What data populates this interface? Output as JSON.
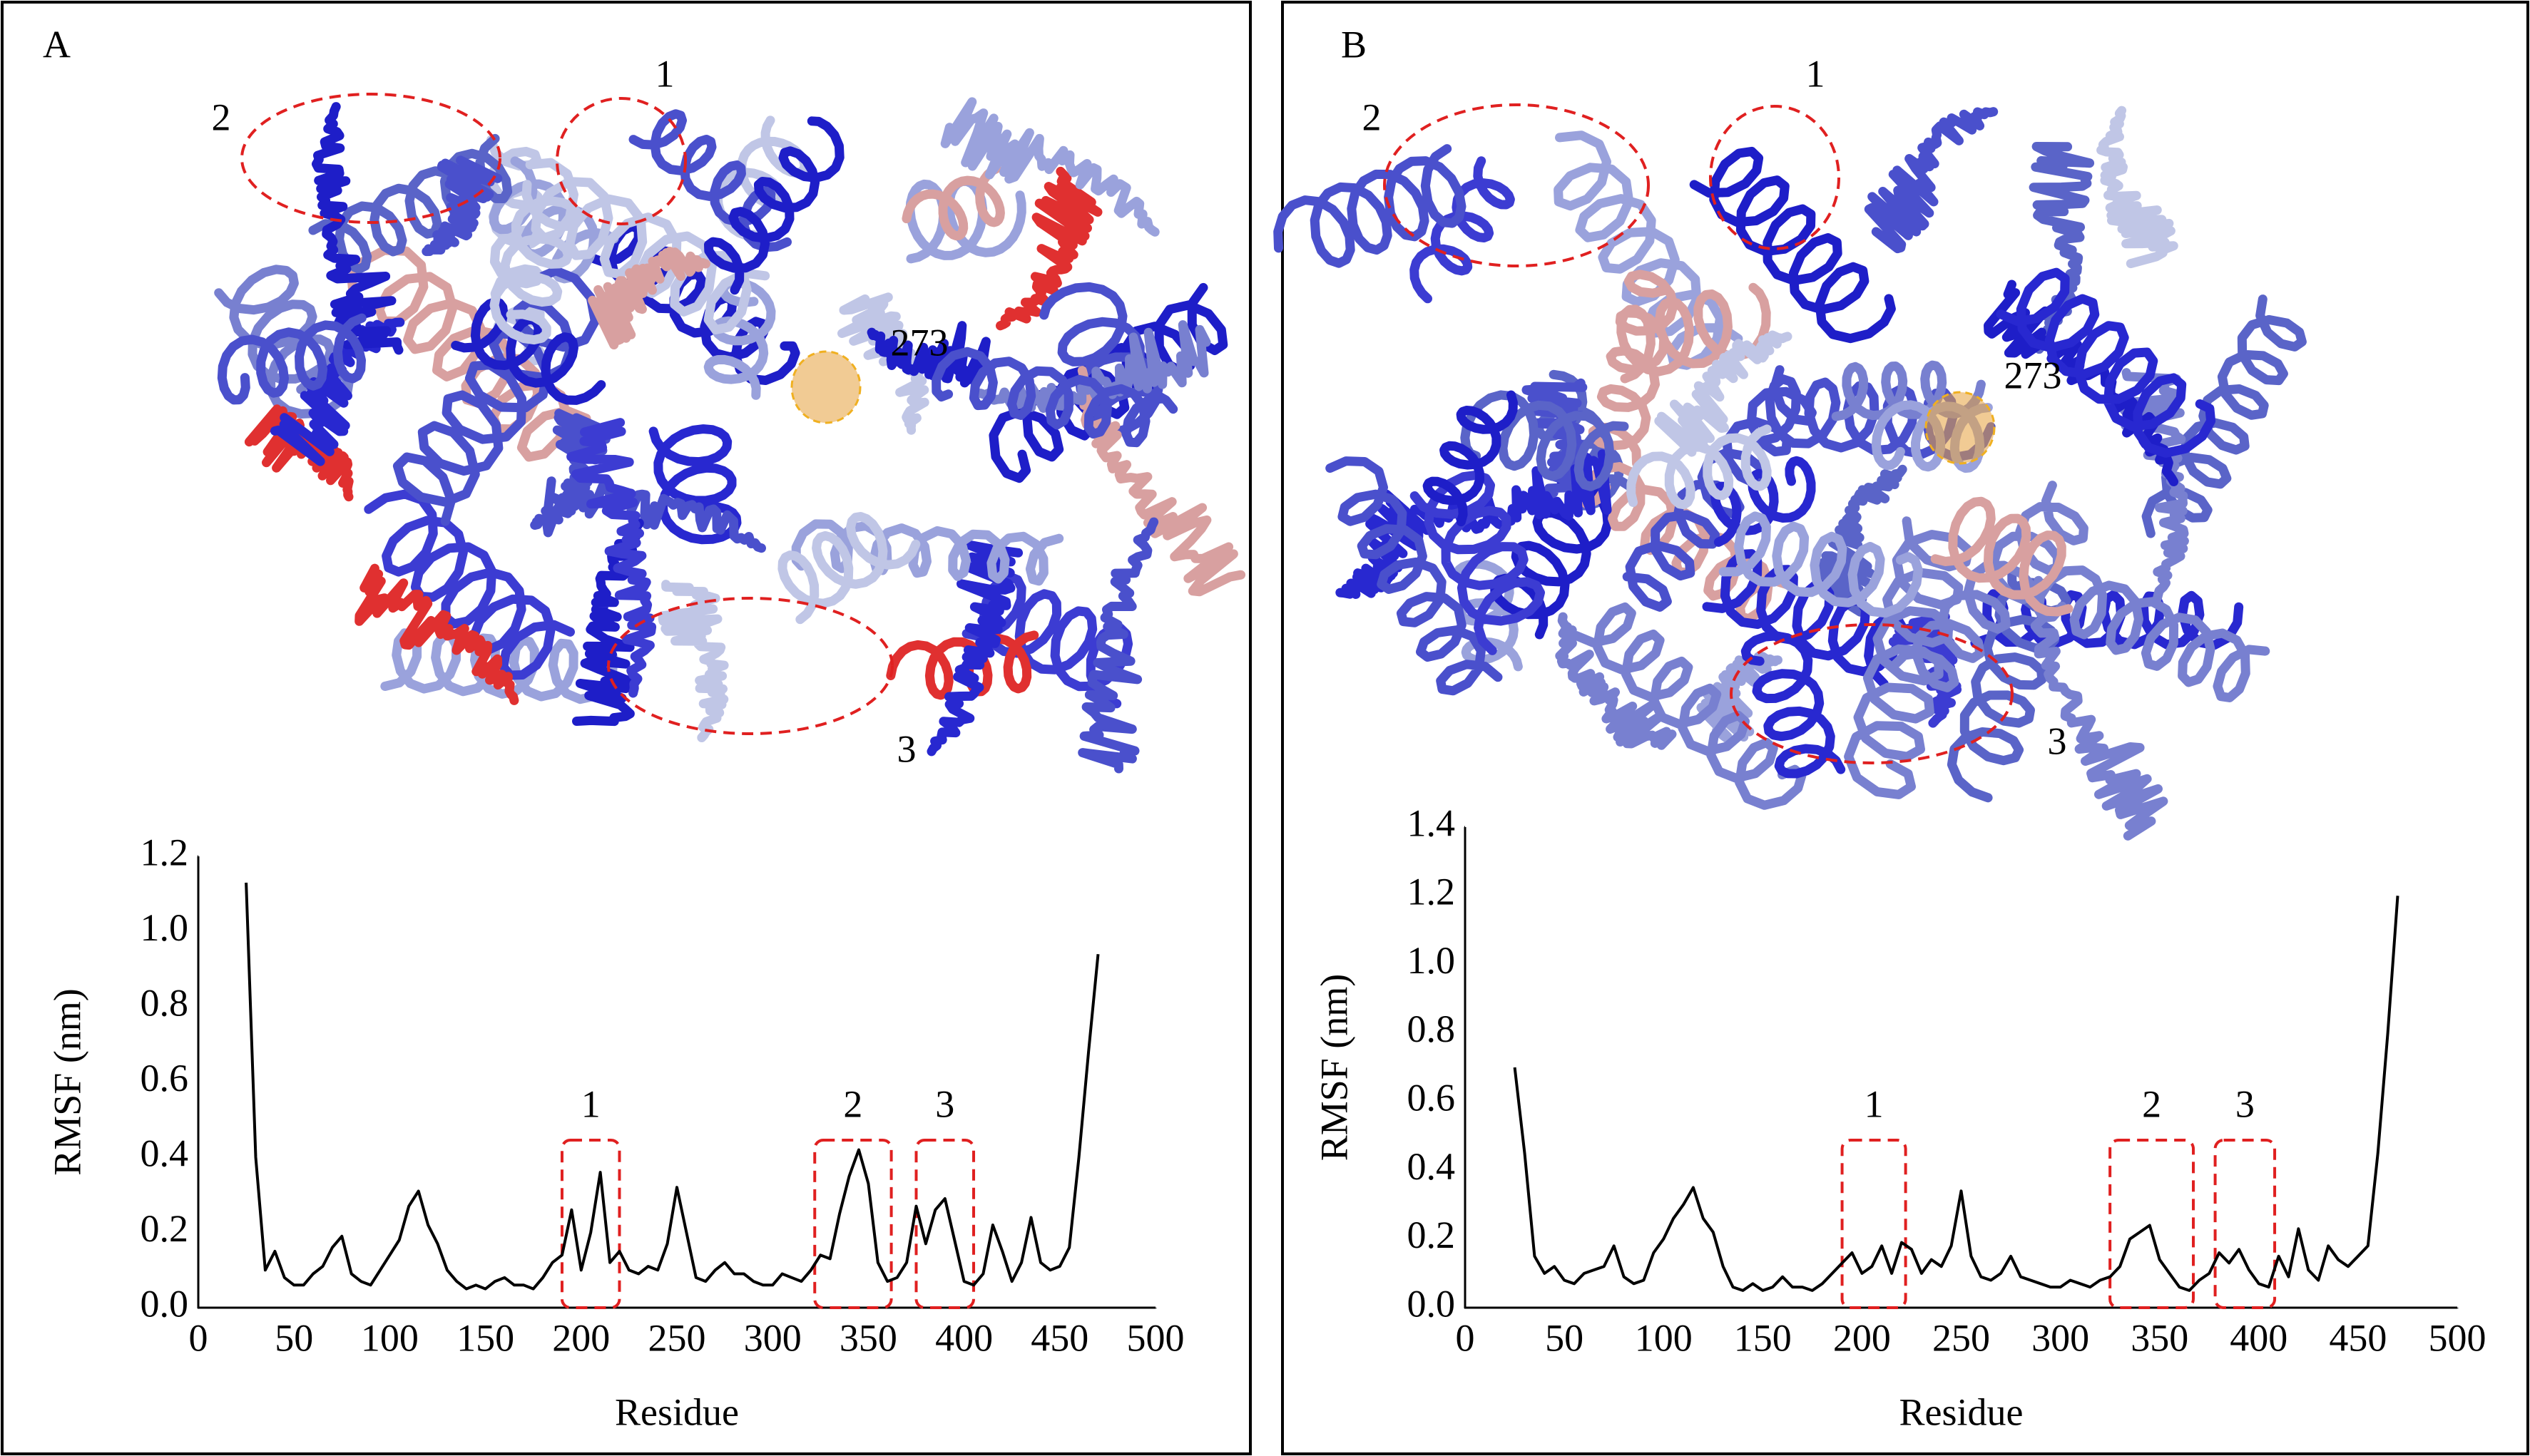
{
  "chart_data": [
    {
      "type": "line",
      "panel_label": "A",
      "structure_labels": [
        "1",
        "2",
        "3",
        "273"
      ],
      "xlabel": "Residue",
      "ylabel": "RMSF (nm)",
      "color": "#000000",
      "grid": false,
      "xlim": [
        0,
        500
      ],
      "ylim": [
        0,
        1.2
      ],
      "xticks": [
        0,
        50,
        100,
        150,
        200,
        250,
        300,
        350,
        400,
        450,
        500
      ],
      "yticks": [
        {
          "value": 0,
          "label": "0.0"
        },
        0.2,
        0.4,
        0.6,
        0.8,
        {
          "value": 1,
          "label": "1.0"
        },
        1.2
      ],
      "highlight_regions": [
        {
          "label": "1",
          "start": 190,
          "end": 220
        },
        {
          "label": "2",
          "start": 322,
          "end": 362
        },
        {
          "label": "3",
          "start": 375,
          "end": 405
        }
      ],
      "highlight_color": "#e02020",
      "x": [
        25,
        30,
        35,
        40,
        45,
        50,
        55,
        60,
        65,
        70,
        75,
        80,
        85,
        90,
        95,
        100,
        105,
        110,
        115,
        120,
        125,
        130,
        135,
        140,
        145,
        150,
        155,
        160,
        165,
        170,
        175,
        180,
        185,
        190,
        195,
        200,
        205,
        210,
        215,
        220,
        225,
        230,
        235,
        240,
        245,
        250,
        255,
        260,
        265,
        270,
        275,
        280,
        285,
        290,
        295,
        300,
        305,
        310,
        315,
        320,
        325,
        330,
        335,
        340,
        345,
        350,
        355,
        360,
        365,
        370,
        375,
        380,
        385,
        390,
        395,
        400,
        405,
        410,
        415,
        420,
        425,
        430,
        435,
        440,
        445,
        450,
        455,
        460,
        465,
        470
      ],
      "values": [
        1.13,
        0.4,
        0.1,
        0.15,
        0.08,
        0.06,
        0.06,
        0.09,
        0.11,
        0.16,
        0.19,
        0.09,
        0.07,
        0.06,
        0.1,
        0.14,
        0.18,
        0.27,
        0.31,
        0.22,
        0.17,
        0.1,
        0.07,
        0.05,
        0.06,
        0.05,
        0.07,
        0.08,
        0.06,
        0.06,
        0.05,
        0.08,
        0.12,
        0.14,
        0.26,
        0.1,
        0.2,
        0.36,
        0.12,
        0.15,
        0.1,
        0.09,
        0.11,
        0.1,
        0.17,
        0.32,
        0.2,
        0.08,
        0.07,
        0.1,
        0.12,
        0.09,
        0.09,
        0.07,
        0.06,
        0.06,
        0.09,
        0.08,
        0.07,
        0.1,
        0.14,
        0.13,
        0.25,
        0.35,
        0.42,
        0.33,
        0.12,
        0.07,
        0.08,
        0.12,
        0.27,
        0.17,
        0.26,
        0.29,
        0.18,
        0.07,
        0.06,
        0.09,
        0.22,
        0.15,
        0.07,
        0.12,
        0.24,
        0.12,
        0.1,
        0.11,
        0.16,
        0.4,
        0.68,
        0.94
      ]
    },
    {
      "type": "line",
      "panel_label": "B",
      "structure_labels": [
        "1",
        "2",
        "3",
        "273"
      ],
      "xlabel": "Residue",
      "ylabel": "RMSF (nm)",
      "color": "#000000",
      "grid": false,
      "xlim": [
        0,
        500
      ],
      "ylim": [
        0,
        1.4
      ],
      "xticks": [
        0,
        50,
        100,
        150,
        200,
        250,
        300,
        350,
        400,
        450,
        500
      ],
      "yticks": [
        {
          "value": 0,
          "label": "0.0"
        },
        0.2,
        0.4,
        0.6,
        0.8,
        {
          "value": 1,
          "label": "1.0"
        },
        1.2,
        1.4
      ],
      "highlight_regions": [
        {
          "label": "1",
          "start": 190,
          "end": 222
        },
        {
          "label": "2",
          "start": 325,
          "end": 367
        },
        {
          "label": "3",
          "start": 378,
          "end": 408
        }
      ],
      "highlight_color": "#e02020",
      "x": [
        25,
        30,
        35,
        40,
        45,
        50,
        55,
        60,
        65,
        70,
        75,
        80,
        85,
        90,
        95,
        100,
        105,
        110,
        115,
        120,
        125,
        130,
        135,
        140,
        145,
        150,
        155,
        160,
        165,
        170,
        175,
        180,
        185,
        190,
        195,
        200,
        205,
        210,
        215,
        220,
        225,
        230,
        235,
        240,
        245,
        250,
        255,
        260,
        265,
        270,
        275,
        280,
        285,
        290,
        295,
        300,
        305,
        310,
        315,
        320,
        325,
        330,
        335,
        340,
        345,
        350,
        355,
        360,
        365,
        370,
        375,
        380,
        385,
        390,
        395,
        400,
        405,
        410,
        415,
        420,
        425,
        430,
        435,
        440,
        445,
        450,
        455,
        460,
        465,
        470
      ],
      "values": [
        0.7,
        0.45,
        0.15,
        0.1,
        0.12,
        0.08,
        0.07,
        0.1,
        0.11,
        0.12,
        0.18,
        0.09,
        0.07,
        0.08,
        0.16,
        0.2,
        0.26,
        0.3,
        0.35,
        0.26,
        0.22,
        0.12,
        0.06,
        0.05,
        0.07,
        0.05,
        0.06,
        0.09,
        0.06,
        0.06,
        0.05,
        0.07,
        0.1,
        0.13,
        0.16,
        0.1,
        0.12,
        0.18,
        0.1,
        0.19,
        0.17,
        0.1,
        0.14,
        0.12,
        0.18,
        0.34,
        0.15,
        0.09,
        0.08,
        0.1,
        0.15,
        0.09,
        0.08,
        0.07,
        0.06,
        0.06,
        0.08,
        0.07,
        0.06,
        0.08,
        0.09,
        0.12,
        0.2,
        0.22,
        0.24,
        0.14,
        0.1,
        0.06,
        0.05,
        0.08,
        0.1,
        0.16,
        0.13,
        0.17,
        0.11,
        0.07,
        0.06,
        0.15,
        0.09,
        0.23,
        0.11,
        0.08,
        0.18,
        0.14,
        0.12,
        0.15,
        0.18,
        0.45,
        0.8,
        1.2
      ]
    }
  ]
}
